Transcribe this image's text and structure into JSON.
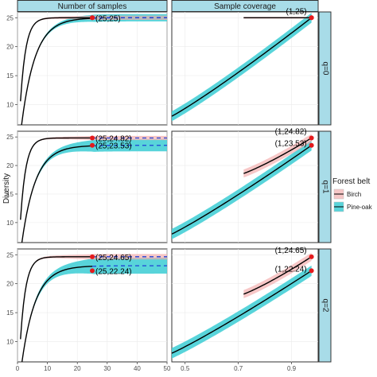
{
  "chart_data": {
    "type": "line",
    "title": "",
    "ylabel": "Diversity",
    "colors": {
      "Birch": "#f2a9a9",
      "Pine-oak": "#46cfd6",
      "strip": "#a8dce8",
      "point": "#e41a1c"
    },
    "columns": [
      {
        "name": "Number of samples",
        "xlim": [
          0,
          50
        ],
        "xticks": [
          0,
          10,
          20,
          30,
          40,
          50
        ]
      },
      {
        "name": "Sample coverage",
        "xlim": [
          0.45,
          1.0
        ],
        "xticks": [
          0.5,
          0.7,
          0.9
        ],
        "xtick_labels": [
          "0.5",
          "0.7",
          "0.9"
        ]
      }
    ],
    "rows": [
      {
        "name": "q=0",
        "ylim": [
          6.5,
          26
        ],
        "yticks": [
          10,
          15,
          20,
          25
        ],
        "series": [
          {
            "name": "Birch",
            "observed_n": 25,
            "observed": 25,
            "asymptote": 25,
            "n_band": 0.35,
            "c_band": 0.15,
            "c_min": 0.72,
            "c_start": 25.0,
            "curvature": 0.5,
            "cov_end": 0.975
          },
          {
            "name": "Pine-oak",
            "observed_n": 25,
            "observed": 25,
            "asymptote": 25,
            "n_band": 0.6,
            "c_band": 0.85,
            "c_min": 0.45,
            "c_start": 8.0,
            "curvature": 0.72,
            "cov_end": 0.975
          }
        ],
        "labels_n": [
          "(25,25)"
        ],
        "labels_c": [
          "(1,25)"
        ]
      },
      {
        "name": "q=1",
        "ylim": [
          6.5,
          26
        ],
        "yticks": [
          10,
          15,
          20,
          25
        ],
        "series": [
          {
            "name": "Birch",
            "observed_n": 25,
            "observed": 24.82,
            "asymptote": 24.82,
            "n_band": 0.35,
            "c_band": 0.7,
            "c_min": 0.72,
            "c_start": 18.6,
            "curvature": 0.5,
            "cov_end": 0.975
          },
          {
            "name": "Pine-oak",
            "observed_n": 25,
            "observed": 23.53,
            "asymptote": 23.53,
            "n_band": 1.0,
            "c_band": 0.9,
            "c_min": 0.45,
            "c_start": 8.0,
            "curvature": 0.72,
            "cov_end": 0.975
          }
        ],
        "labels_n": [
          "(25,24.82)",
          "(25,23.53)"
        ],
        "labels_c": [
          "(1,24.82)",
          "(1,23.53)"
        ]
      },
      {
        "name": "q=2",
        "ylim": [
          6.5,
          26
        ],
        "yticks": [
          10,
          15,
          20,
          25
        ],
        "series": [
          {
            "name": "Birch",
            "observed_n": 25,
            "observed": 24.65,
            "asymptote": 24.65,
            "n_band": 0.45,
            "c_band": 0.7,
            "c_min": 0.72,
            "c_start": 18.2,
            "curvature": 0.5,
            "cov_end": 0.975
          },
          {
            "name": "Pine-oak",
            "observed_n": 25,
            "observed": 22.24,
            "asymptote": 23.1,
            "n_band": 1.3,
            "c_band": 0.9,
            "c_min": 0.45,
            "c_start": 8.0,
            "curvature": 0.72,
            "cov_end": 0.975
          }
        ],
        "labels_n": [
          "(25,24.65)",
          "(25,22.24)"
        ],
        "labels_c": [
          "(1,24.65)",
          "(1,22.24)"
        ]
      }
    ],
    "legend": {
      "title": "Forest belt",
      "position": "right",
      "entries": [
        "Birch",
        "Pine-oak"
      ]
    }
  }
}
